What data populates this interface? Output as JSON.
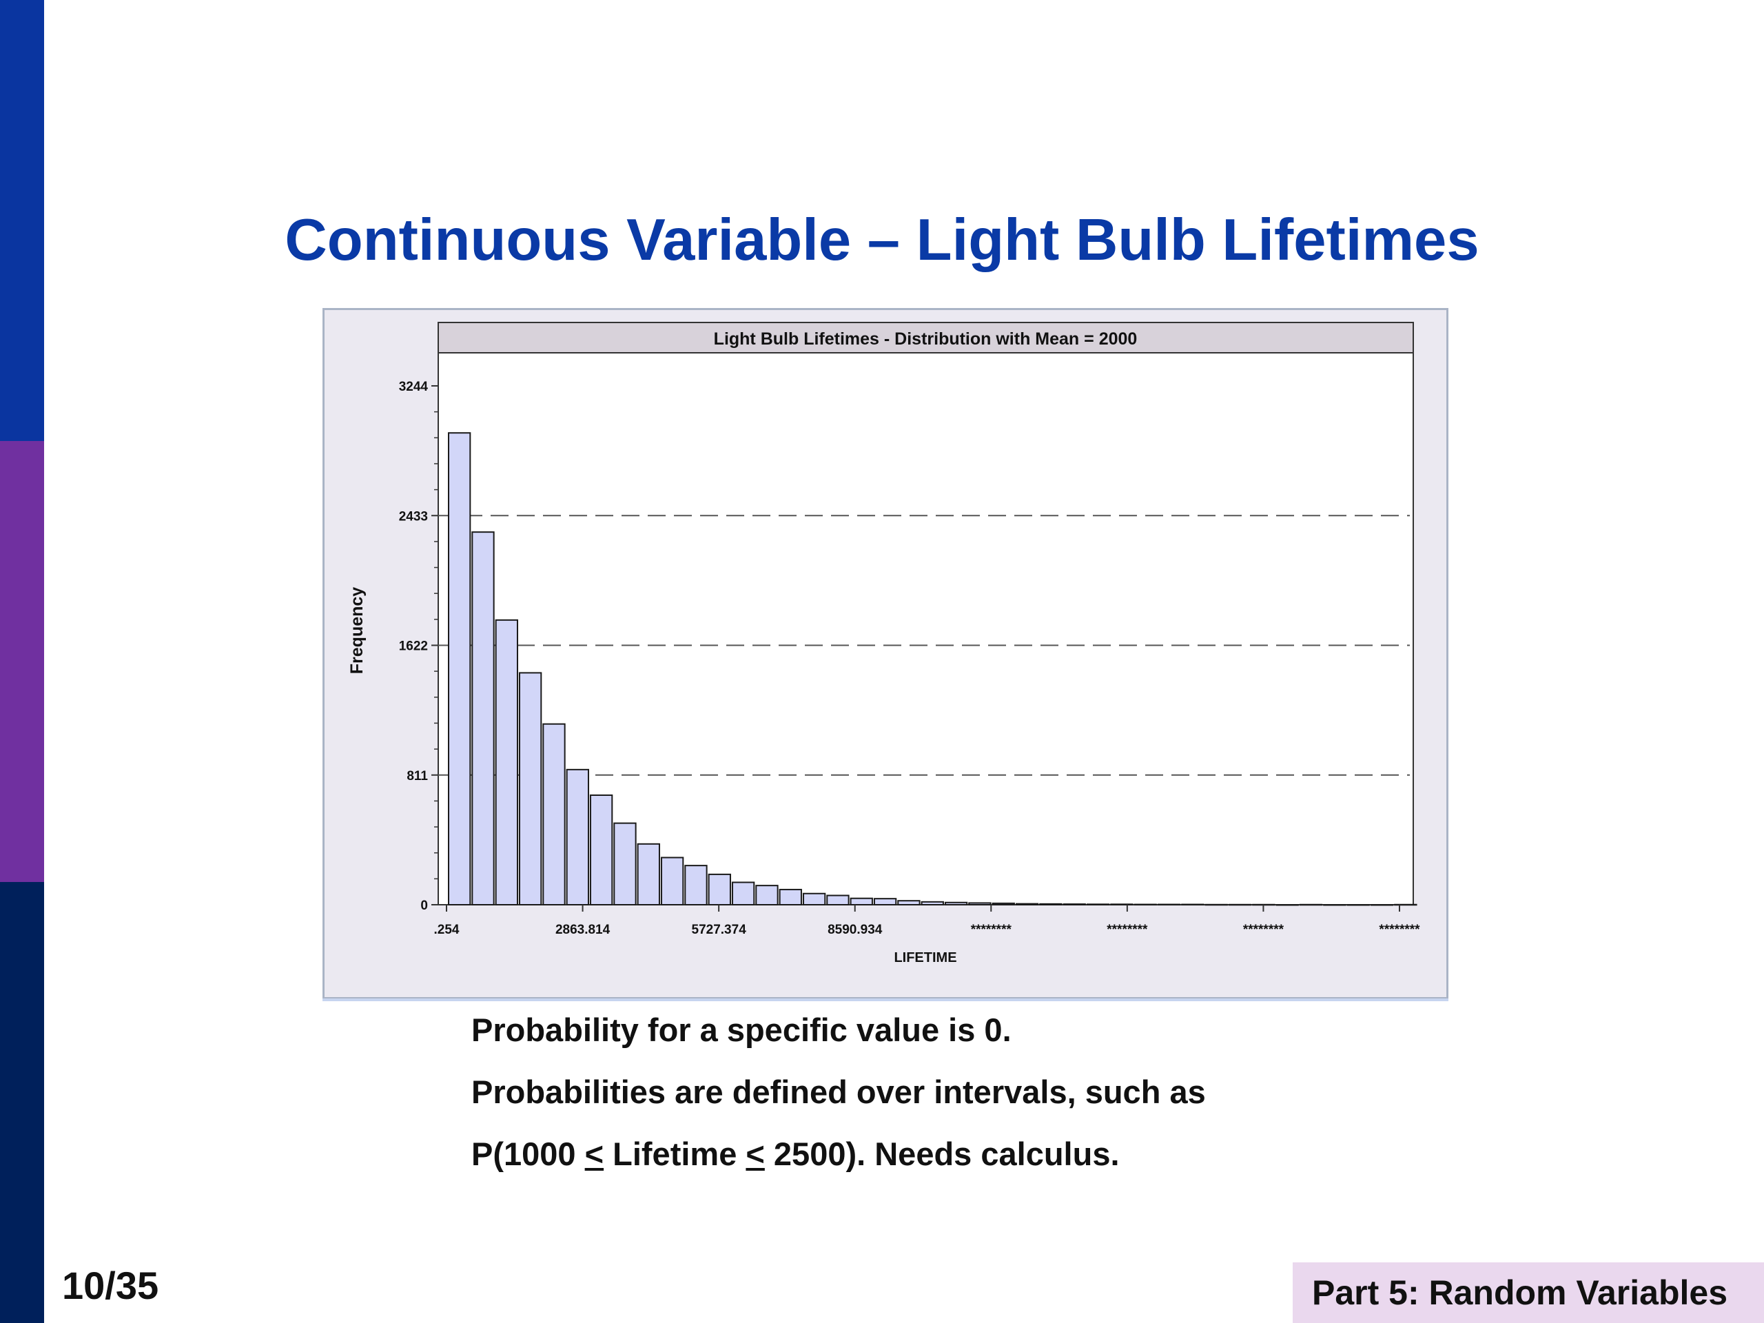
{
  "colors": {
    "sidebar_top": "#0a35a0",
    "sidebar_mid": "#7030a0",
    "sidebar_bottom": "#00205b",
    "title": "#0a3aa6",
    "bar_fill": "#d2d6f8",
    "bar_stroke": "#1a1a1a",
    "chart_title_bg": "#d8d2da"
  },
  "slide": {
    "title": "Continuous Variable – Light Bulb Lifetimes",
    "page_number": "10/35",
    "footer": "Part 5: Random Variables"
  },
  "chart_data": {
    "type": "bar",
    "title": "Light Bulb Lifetimes - Distribution with Mean = 2000",
    "xlabel": "LIFETIME",
    "ylabel": "Frequency",
    "x_tick_labels": [
      ".254",
      "2863.814",
      "5727.374",
      "8590.934",
      "********",
      "********",
      "********",
      "********"
    ],
    "y_ticks": [
      0,
      811,
      1622,
      2433,
      3244
    ],
    "ylim": [
      0,
      3244
    ],
    "grid": "dashed horizontal",
    "series": [
      {
        "values": [
          2950,
          2330,
          1780,
          1450,
          1130,
          845,
          685,
          510,
          380,
          295,
          245,
          190,
          140,
          120,
          95,
          70,
          58,
          40,
          38,
          25,
          18,
          14,
          11,
          9,
          6,
          5,
          4,
          3,
          3,
          2,
          2,
          2,
          1,
          1,
          1,
          0,
          1,
          0,
          0,
          0,
          1
        ]
      }
    ]
  },
  "text": {
    "line1": "Probability for a specific value is 0.",
    "line2": "Probabilities are defined over intervals, such as",
    "line3_pre": "P(1000 ",
    "le1": "<",
    "line3_mid": " Lifetime ",
    "le2": "<",
    "line3_post": " 2500).  Needs calculus."
  }
}
